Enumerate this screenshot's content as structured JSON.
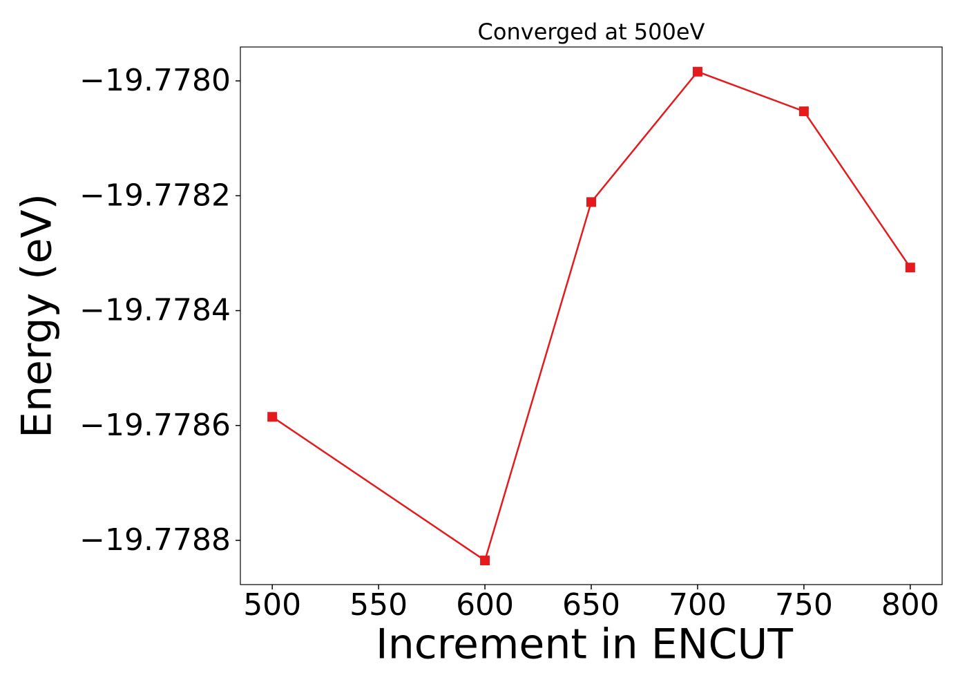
{
  "chart_data": {
    "type": "line",
    "title": "Converged at 500eV",
    "x_label": "Increment in ENCUT",
    "y_label": "Energy (eV)",
    "x": [
      500,
      600,
      650,
      700,
      750,
      800
    ],
    "series": [
      {
        "color": "#e41a1c",
        "marker": "square",
        "values": [
          -19.778585,
          -19.778835,
          -19.778211,
          -19.777984,
          -19.778053,
          -19.778325
        ]
      }
    ],
    "xlim": [
      485,
      815
    ],
    "xticks": [
      500,
      550,
      600,
      650,
      700,
      750,
      800
    ],
    "ylim": [
      -19.778877,
      -19.777941
    ],
    "yticks": [
      {
        "value": -19.7788,
        "label": "−19.7788"
      },
      {
        "value": -19.7786,
        "label": "−19.7786"
      },
      {
        "value": -19.7784,
        "label": "−19.7784"
      },
      {
        "value": -19.7782,
        "label": "−19.7782"
      },
      {
        "value": -19.778,
        "label": "−19.7780"
      }
    ],
    "grid": false
  }
}
